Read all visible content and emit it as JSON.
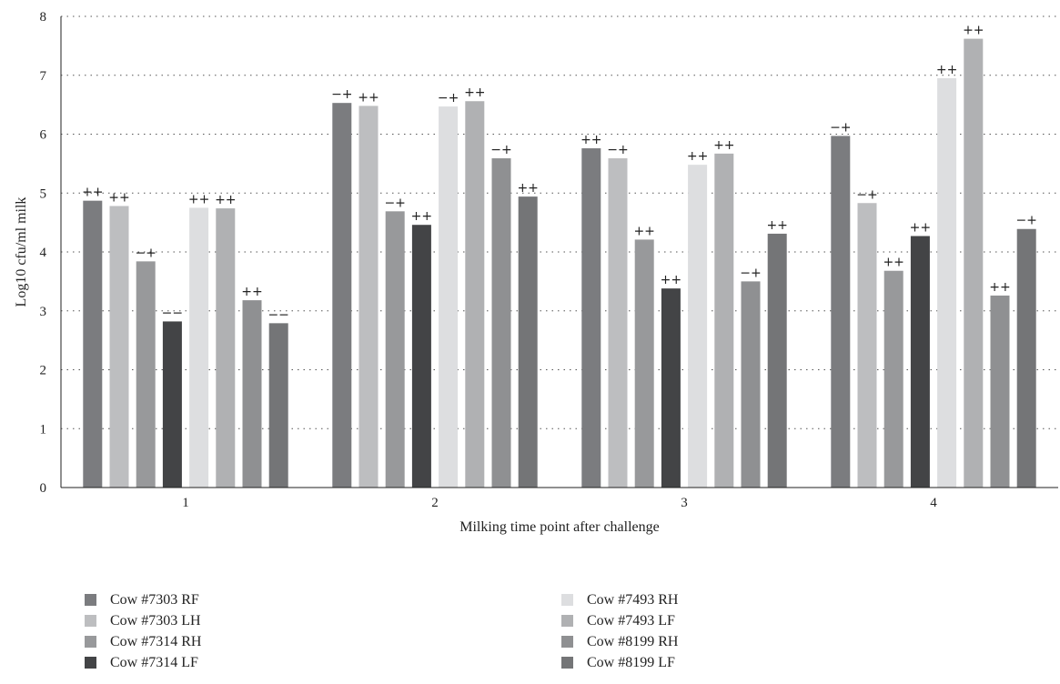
{
  "chart_data": {
    "type": "bar",
    "title": "",
    "xlabel": "Milking time point after challenge",
    "ylabel": "Log10 cfu/ml milk",
    "ylim": [
      0,
      8
    ],
    "yticks": [
      "0",
      "1",
      "2",
      "3",
      "4",
      "5",
      "6",
      "7",
      "8"
    ],
    "categories": [
      "1",
      "2",
      "3",
      "4"
    ],
    "grid": "horizontal dotted",
    "legend_position": "bottom",
    "series": [
      {
        "name": "Cow #7303 RF",
        "color": "#7b7c7f",
        "values": [
          4.87,
          6.53,
          5.76,
          5.97
        ],
        "labels": [
          "++",
          "−+",
          "++",
          "−+"
        ]
      },
      {
        "name": "Cow #7303 LH",
        "color": "#bdbec0",
        "values": [
          4.78,
          6.48,
          5.59,
          4.83
        ],
        "labels": [
          "++",
          "++",
          "−+",
          "−+"
        ]
      },
      {
        "name": "Cow #7314 RH",
        "color": "#98999b",
        "values": [
          3.84,
          4.69,
          4.21,
          3.68
        ],
        "labels": [
          "−+",
          "−+",
          "++",
          "++"
        ]
      },
      {
        "name": "Cow #7314 LF",
        "color": "#434446",
        "values": [
          2.82,
          4.46,
          3.38,
          4.27
        ],
        "labels": [
          "−−",
          "++",
          "++",
          "++"
        ]
      },
      {
        "name": "Cow #7493 RH",
        "color": "#dddee0",
        "values": [
          4.75,
          6.47,
          5.48,
          6.95
        ],
        "labels": [
          "++",
          "−+",
          "++",
          "++"
        ]
      },
      {
        "name": "Cow #7493 LF",
        "color": "#b0b1b3",
        "values": [
          4.74,
          6.56,
          5.67,
          7.62
        ],
        "labels": [
          "++",
          "++",
          "++",
          "++"
        ]
      },
      {
        "name": "Cow #8199 RH",
        "color": "#8f9092",
        "values": [
          3.18,
          5.59,
          3.5,
          3.26
        ],
        "labels": [
          "++",
          "−+",
          "−+",
          "++"
        ]
      },
      {
        "name": "Cow #8199 LF",
        "color": "#747577",
        "values": [
          2.79,
          4.94,
          4.31,
          4.39
        ],
        "labels": [
          "−−",
          "++",
          "++",
          "−+"
        ]
      }
    ]
  }
}
